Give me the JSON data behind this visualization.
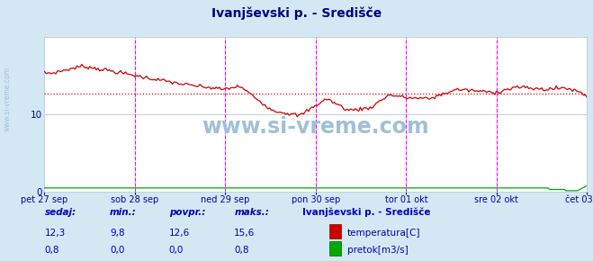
{
  "title": "Ivanjševski p. - Središče",
  "bg_color": "#d4e8f4",
  "plot_bg_color": "#ffffff",
  "grid_color": "#c0d0e0",
  "x_labels": [
    "pet 27 sep",
    "sob 28 sep",
    "ned 29 sep",
    "pon 30 sep",
    "tor 01 okt",
    "sre 02 okt",
    "čet 03 okt"
  ],
  "x_ticks_norm": [
    0.0,
    0.1667,
    0.3333,
    0.5,
    0.6667,
    0.8333,
    1.0
  ],
  "ylim": [
    0,
    20
  ],
  "temp_color": "#cc0000",
  "flow_color": "#00aa00",
  "avg_temp": 12.6,
  "vline_color": "#ff00ff",
  "avg_line_color": "#dd0000",
  "watermark": "www.si-vreme.com",
  "watermark_color": "#a0c0d8",
  "label_color": "#0000aa",
  "footer_header_color": "#0000bb",
  "sedaj_temp": "12,3",
  "min_temp": "9,8",
  "avg_temp_str": "12,6",
  "max_temp": "15,6",
  "sedaj_flow": "0,8",
  "min_flow": "0,0",
  "avg_flow_str": "0,0",
  "max_flow": "0,8"
}
